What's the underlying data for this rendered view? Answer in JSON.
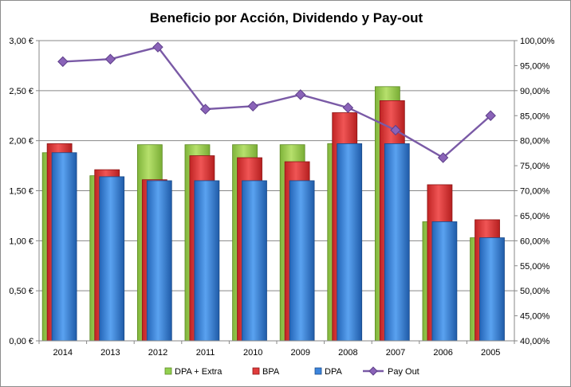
{
  "chart_data": {
    "type": "bar",
    "title": "Beneficio  por Acción, Dividendo y Pay-out",
    "categories": [
      "2014",
      "2013",
      "2012",
      "2011",
      "2010",
      "2009",
      "2008",
      "2007",
      "2006",
      "2005"
    ],
    "series": [
      {
        "name": "DPA + Extra",
        "axis": "left",
        "values": [
          1.88,
          1.65,
          1.96,
          1.96,
          1.96,
          1.96,
          1.97,
          2.54,
          1.19,
          1.03
        ],
        "color": "#92d050"
      },
      {
        "name": "BPA",
        "axis": "left",
        "values": [
          1.97,
          1.71,
          1.61,
          1.85,
          1.83,
          1.79,
          2.28,
          2.4,
          1.56,
          1.21
        ],
        "color": "#e03c3c"
      },
      {
        "name": "DPA",
        "axis": "left",
        "values": [
          1.88,
          1.64,
          1.6,
          1.6,
          1.6,
          1.6,
          1.97,
          1.97,
          1.19,
          1.03
        ],
        "color": "#3c85dc"
      },
      {
        "name": "Pay Out",
        "axis": "right",
        "type": "line",
        "values": [
          95.8,
          96.3,
          98.7,
          86.3,
          86.9,
          89.2,
          86.6,
          82.1,
          76.6,
          85.0
        ],
        "color": "#7a5aa6"
      }
    ],
    "yleft": {
      "lim": [
        0,
        3
      ],
      "ticks": [
        0,
        0.5,
        1,
        1.5,
        2,
        2.5,
        3
      ],
      "tick_labels": [
        "0,00 €",
        "0,50 €",
        "1,00 €",
        "1,50 €",
        "2,00 €",
        "2,50 €",
        "3,00 €"
      ]
    },
    "yright": {
      "lim": [
        40,
        100
      ],
      "ticks": [
        40,
        45,
        50,
        55,
        60,
        65,
        70,
        75,
        80,
        85,
        90,
        95,
        100
      ],
      "tick_labels": [
        "40,00%",
        "45,00%",
        "50,00%",
        "55,00%",
        "60,00%",
        "65,00%",
        "70,00%",
        "75,00%",
        "80,00%",
        "85,00%",
        "90,00%",
        "95,00%",
        "100,00%"
      ]
    },
    "grid": true,
    "legend_position": "bottom"
  }
}
